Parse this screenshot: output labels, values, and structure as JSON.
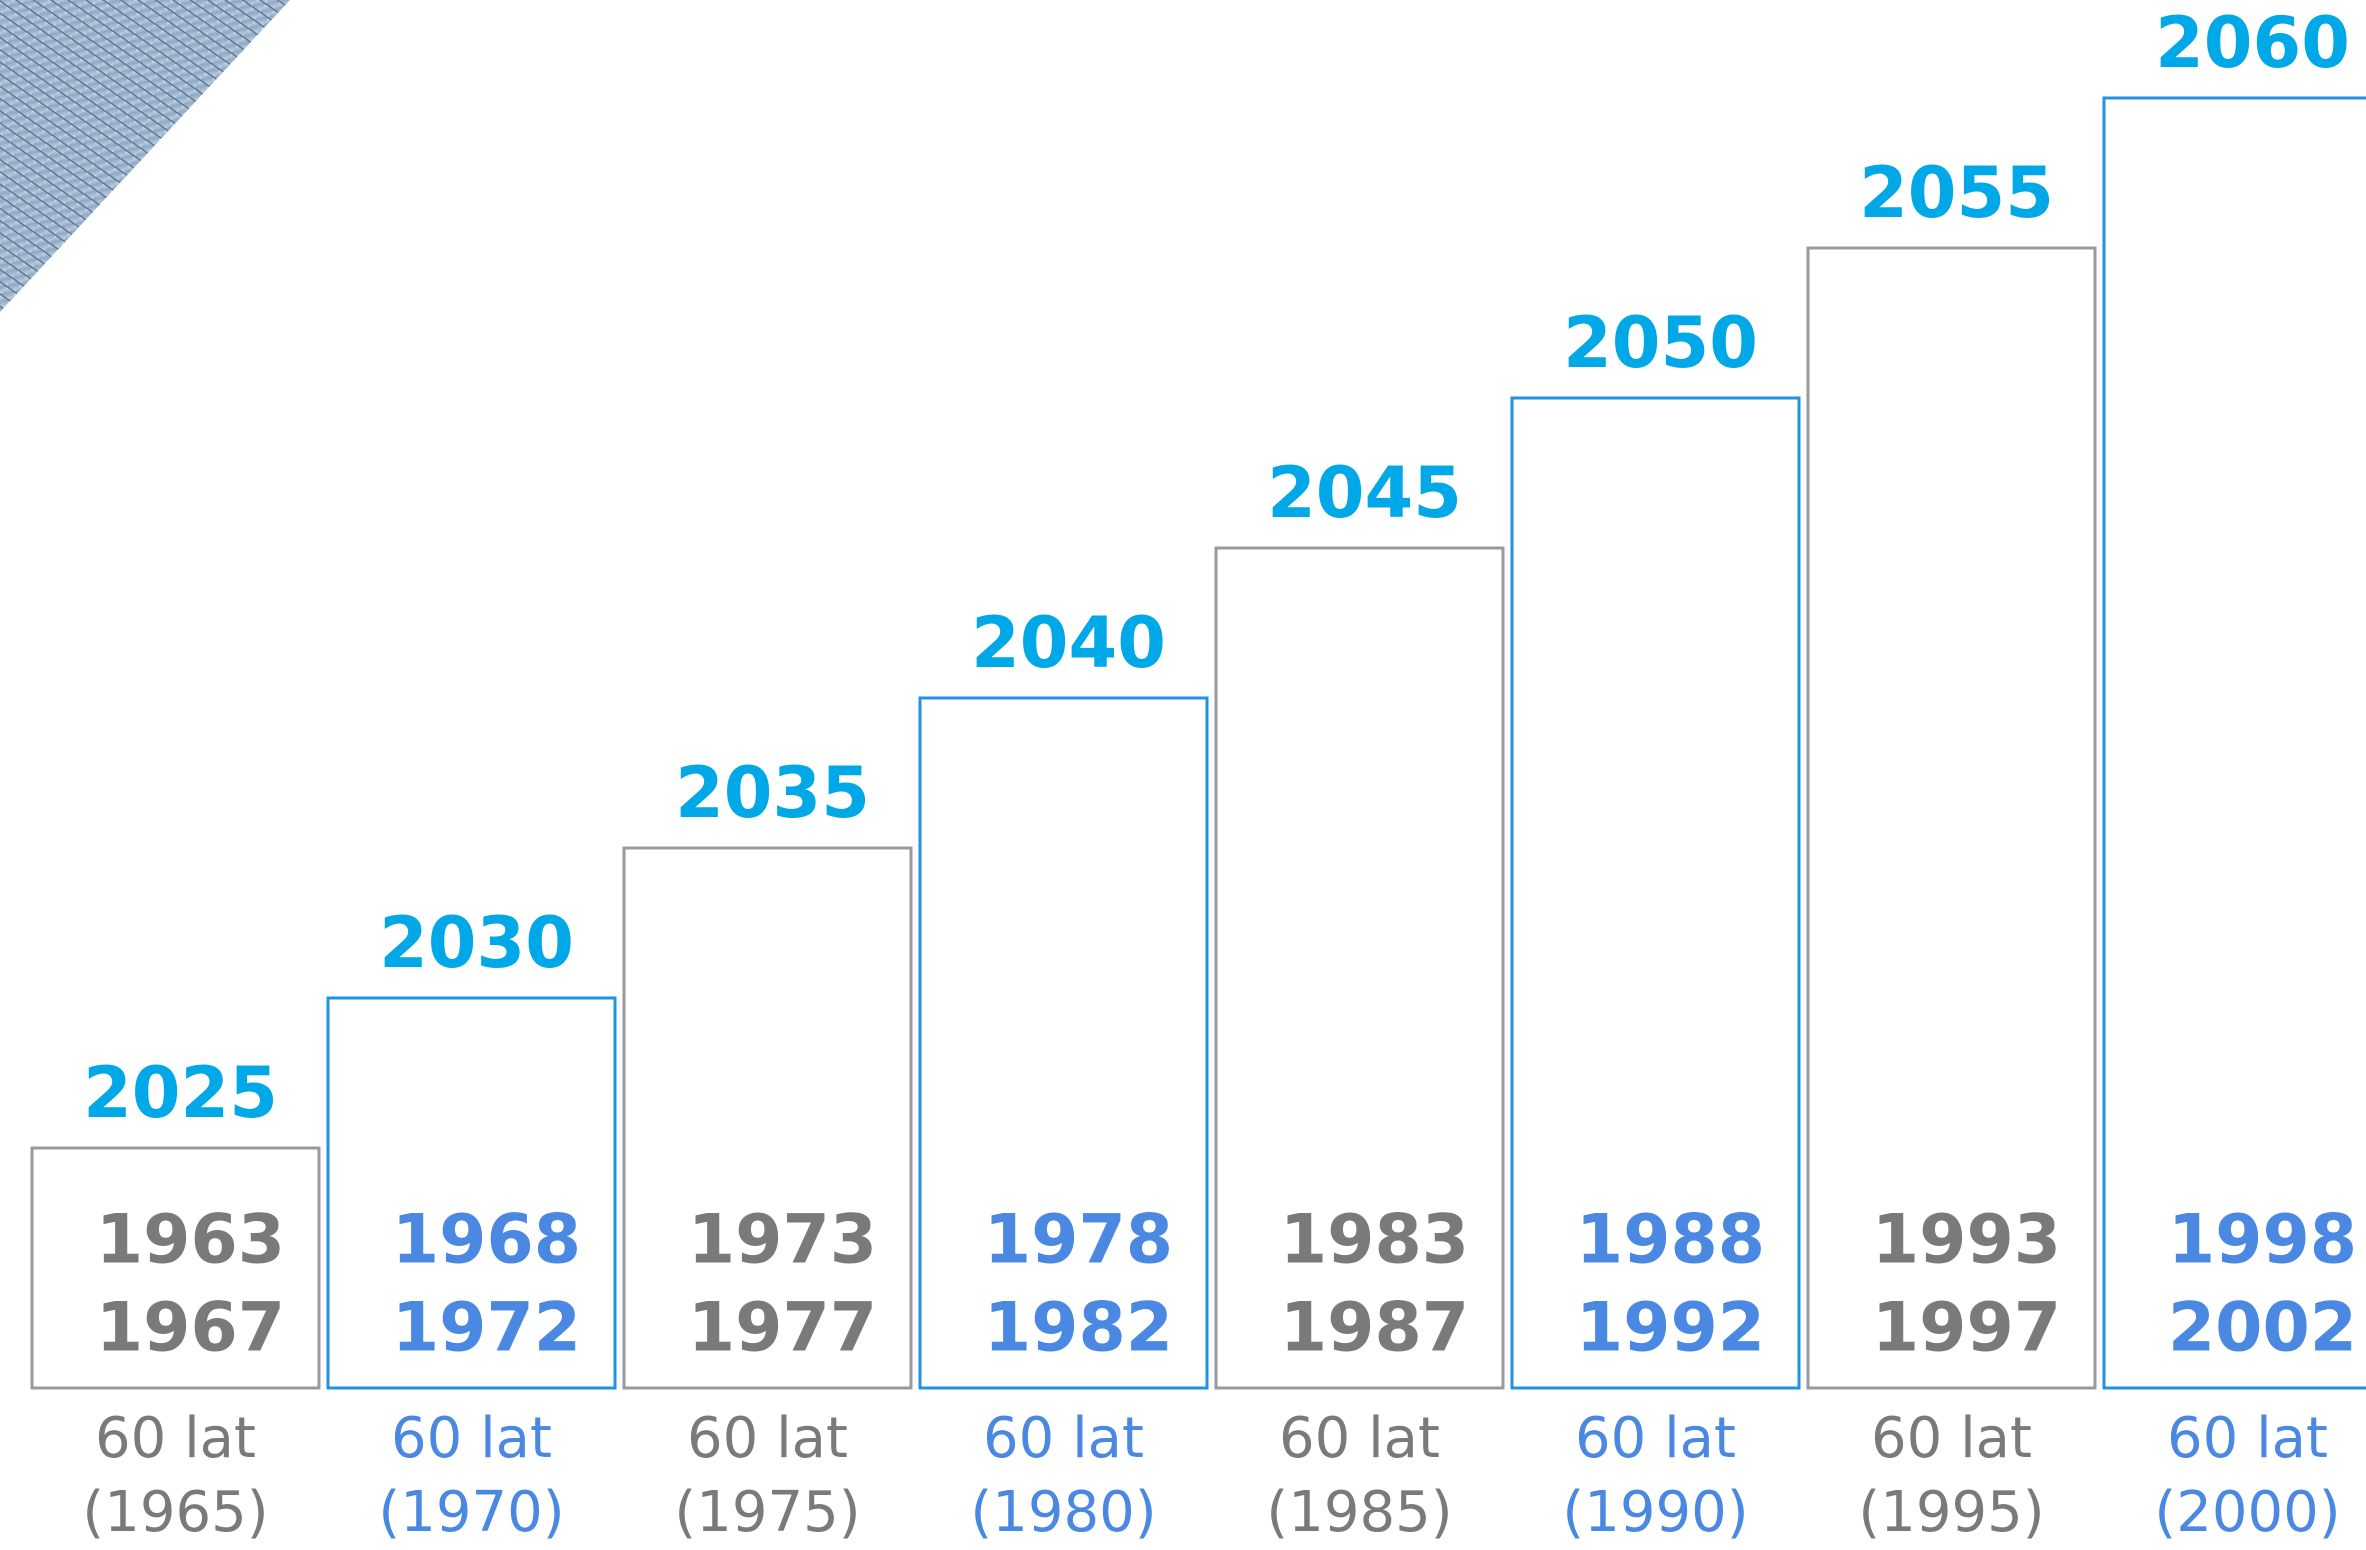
{
  "chart_data": {
    "type": "bar",
    "values": [
      2025,
      2030,
      2035,
      2040,
      2045,
      2050,
      2055,
      2060
    ],
    "ranges": [
      [
        "1963",
        "1967"
      ],
      [
        "1968",
        "1972"
      ],
      [
        "1973",
        "1977"
      ],
      [
        "1978",
        "1982"
      ],
      [
        "1983",
        "1987"
      ],
      [
        "1988",
        "1992"
      ],
      [
        "1993",
        "1997"
      ],
      [
        "1998",
        "2002"
      ]
    ],
    "labels": [
      [
        "60 lat",
        "(1965)"
      ],
      [
        "60 lat",
        "(1970)"
      ],
      [
        "60 lat",
        "(1975)"
      ],
      [
        "60 lat",
        "(1980)"
      ],
      [
        "60 lat",
        "(1985)"
      ],
      [
        "60 lat",
        "(1990)"
      ],
      [
        "60 lat",
        "(1995)"
      ],
      [
        "60 lat",
        "(2000)"
      ]
    ],
    "colors": [
      "#9a9a9a",
      "#2391e2",
      "#9a9a9a",
      "#2391e2",
      "#9a9a9a",
      "#2391e2",
      "#9a9a9a",
      "#2391e2"
    ],
    "text_colors": [
      "#7a7a7a",
      "#4a88e2",
      "#7a7a7a",
      "#4a88e2",
      "#7a7a7a",
      "#4a88e2",
      "#7a7a7a",
      "#4a88e2"
    ],
    "value_color": "#00a8e8",
    "ylim": [
      2017,
      2062
    ]
  }
}
